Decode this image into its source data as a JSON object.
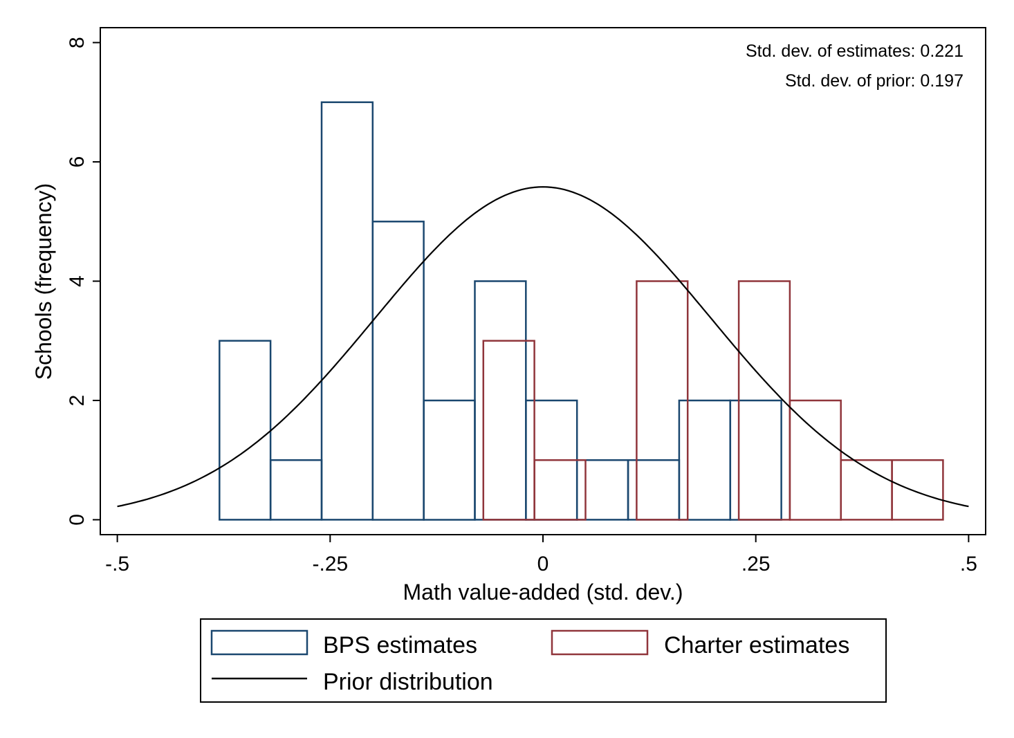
{
  "chart_data": {
    "type": "histogram",
    "xlabel": "Math value-added (std. dev.)",
    "ylabel": "Schools (frequency)",
    "xlim": [
      -0.52,
      0.52
    ],
    "ylim": [
      -0.25,
      8.25
    ],
    "x_ticks": [
      {
        "value": -0.5,
        "label": "-.5"
      },
      {
        "value": -0.25,
        "label": "-.25"
      },
      {
        "value": 0,
        "label": "0"
      },
      {
        "value": 0.25,
        "label": ".25"
      },
      {
        "value": 0.5,
        "label": ".5"
      }
    ],
    "y_ticks": [
      {
        "value": 0,
        "label": "0"
      },
      {
        "value": 2,
        "label": "2"
      },
      {
        "value": 4,
        "label": "4"
      },
      {
        "value": 6,
        "label": "6"
      },
      {
        "value": 8,
        "label": "8"
      }
    ],
    "annotations": [
      "Std. dev. of estimates: 0.221",
      "Std. dev. of prior: 0.197"
    ],
    "series": [
      {
        "name": "BPS estimates",
        "color": "#1a476f",
        "bins": [
          {
            "x0": -0.38,
            "x1": -0.32,
            "count": 3
          },
          {
            "x0": -0.32,
            "x1": -0.26,
            "count": 1
          },
          {
            "x0": -0.26,
            "x1": -0.2,
            "count": 7
          },
          {
            "x0": -0.2,
            "x1": -0.14,
            "count": 5
          },
          {
            "x0": -0.14,
            "x1": -0.08,
            "count": 2
          },
          {
            "x0": -0.08,
            "x1": -0.02,
            "count": 4
          },
          {
            "x0": -0.02,
            "x1": 0.04,
            "count": 2
          },
          {
            "x0": 0.04,
            "x1": 0.1,
            "count": 1
          },
          {
            "x0": 0.1,
            "x1": 0.16,
            "count": 1
          },
          {
            "x0": 0.16,
            "x1": 0.22,
            "count": 2
          },
          {
            "x0": 0.22,
            "x1": 0.28,
            "count": 2
          }
        ]
      },
      {
        "name": "Charter estimates",
        "color": "#90353b",
        "bins": [
          {
            "x0": -0.07,
            "x1": -0.01,
            "count": 3
          },
          {
            "x0": -0.01,
            "x1": 0.05,
            "count": 1
          },
          {
            "x0": 0.11,
            "x1": 0.17,
            "count": 4
          },
          {
            "x0": 0.23,
            "x1": 0.29,
            "count": 4
          },
          {
            "x0": 0.29,
            "x1": 0.35,
            "count": 2
          },
          {
            "x0": 0.35,
            "x1": 0.41,
            "count": 1
          },
          {
            "x0": 0.41,
            "x1": 0.47,
            "count": 1
          }
        ]
      },
      {
        "name": "Prior distribution",
        "color": "#000000",
        "type": "line",
        "mean": 0,
        "peak": 5.58,
        "sd": 0.197,
        "x_range": [
          -0.5,
          0.5
        ]
      }
    ],
    "legend": [
      {
        "label": "BPS estimates",
        "kind": "box",
        "color": "#1a476f"
      },
      {
        "label": "Charter estimates",
        "kind": "box",
        "color": "#90353b"
      },
      {
        "label": "Prior distribution",
        "kind": "line",
        "color": "#000000"
      }
    ],
    "legend_position": "bottom"
  }
}
